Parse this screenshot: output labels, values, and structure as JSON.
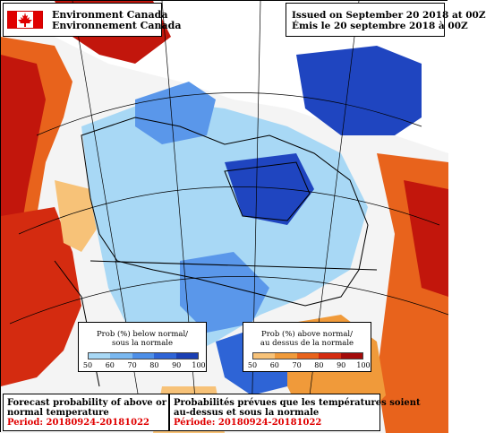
{
  "header": {
    "agency_en": "Environment Canada",
    "agency_fr": "Environnement Canada",
    "issued_en": "Issued on September 20 2018 at 00Z",
    "issued_fr": "Émis le 20 septembre 2018 à 00Z"
  },
  "legend_below": {
    "title_line1": "Prob (%) below normal/",
    "title_line2": "sous la normale",
    "ticks": [
      "50",
      "60",
      "70",
      "80",
      "90",
      "100"
    ],
    "colors": [
      "#a8d8f5",
      "#7ab8f0",
      "#4d8fe8",
      "#2e64d6",
      "#1a3fb3"
    ]
  },
  "legend_above": {
    "title_line1": "Prob (%) above normal/",
    "title_line2": "au dessus de la normale",
    "ticks": [
      "50",
      "60",
      "70",
      "80",
      "90",
      "100"
    ],
    "colors": [
      "#f7c278",
      "#f09a3a",
      "#e8631c",
      "#d42b10",
      "#a30a0a"
    ]
  },
  "footer": {
    "en_line1": "Forecast probability of above or below",
    "en_line2": "normal temperature",
    "en_period": "Period: 20180924-20181022",
    "fr_line1": "Probabilités prévues que les températures soient",
    "fr_line2": "au-dessus et sous la normale",
    "fr_period": "Période: 20180924-20181022"
  },
  "map_colors": {
    "light_blue": "#a8d8f5",
    "mid_blue": "#5a97ea",
    "dark_blue": "#1f45c0",
    "orange": "#f09a3a",
    "dark_red": "#c2160c"
  }
}
